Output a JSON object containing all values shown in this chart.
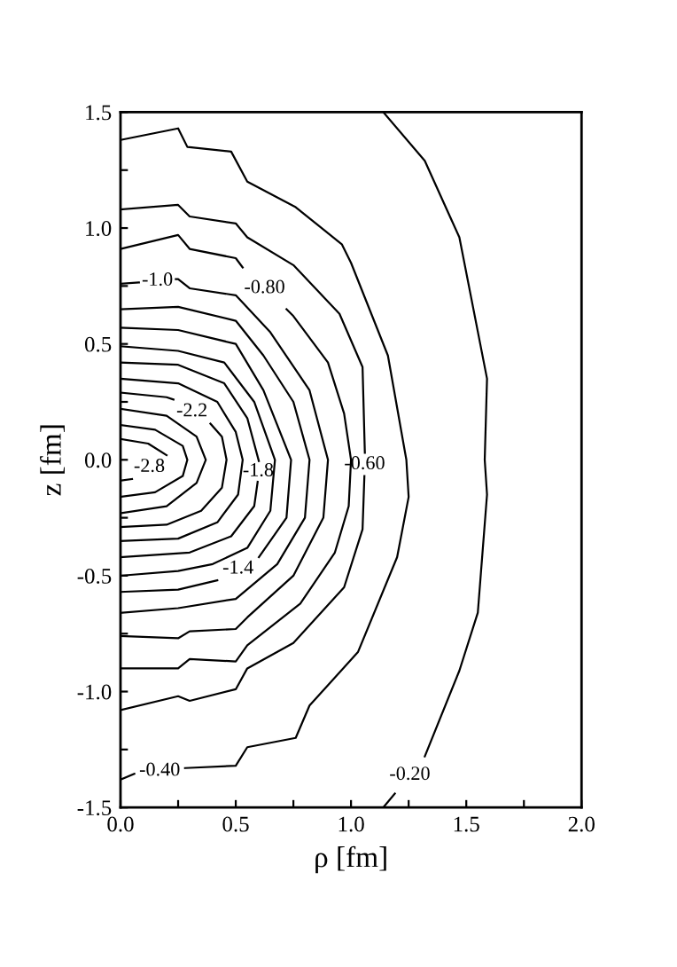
{
  "chart_data": {
    "type": "line",
    "xlabel": "ρ [fm]",
    "ylabel": "z [fm]",
    "xlim": [
      0,
      2
    ],
    "ylim": [
      -1.5,
      1.5
    ],
    "xticks": [
      {
        "value": 0,
        "label": "0.0"
      },
      {
        "value": 0.25,
        "label": null
      },
      {
        "value": 0.5,
        "label": "0.5"
      },
      {
        "value": 0.75,
        "label": null
      },
      {
        "value": 1,
        "label": "1.0"
      },
      {
        "value": 1.25,
        "label": null
      },
      {
        "value": 1.5,
        "label": "1.5"
      },
      {
        "value": 1.75,
        "label": null
      },
      {
        "value": 2,
        "label": "2.0"
      }
    ],
    "yticks": [
      {
        "value": -1.5,
        "label": "-1.5"
      },
      {
        "value": -1.25,
        "label": null
      },
      {
        "value": -1,
        "label": "-1.0"
      },
      {
        "value": -0.75,
        "label": null
      },
      {
        "value": -0.5,
        "label": "-0.5"
      },
      {
        "value": -0.25,
        "label": null
      },
      {
        "value": 0,
        "label": "0.0"
      },
      {
        "value": 0.25,
        "label": null
      },
      {
        "value": 0.5,
        "label": "0.5"
      },
      {
        "value": 0.75,
        "label": null
      },
      {
        "value": 1,
        "label": "1.0"
      },
      {
        "value": 1.25,
        "label": null
      },
      {
        "value": 1.5,
        "label": "1.5"
      }
    ],
    "grid": false,
    "legend": false,
    "marker": "none",
    "line_style": "solid",
    "series": [
      {
        "name": "-0.20",
        "color": "#000000",
        "x": [
          1.14,
          1.32,
          1.47,
          1.59,
          1.58,
          1.59,
          1.55,
          1.47,
          1.32,
          null,
          1.19,
          1.14
        ],
        "values": [
          1.5,
          1.29,
          0.96,
          0.35,
          0.0,
          -0.15,
          -0.66,
          -0.91,
          -1.28,
          null,
          -1.44,
          -1.5
        ]
      },
      {
        "name": "-0.40",
        "color": "#000000",
        "x": [
          0,
          0.25,
          0.29,
          0.48,
          0.55,
          0.76,
          0.96,
          1.0,
          1.16,
          1.24,
          1.25,
          1.2,
          1.03,
          0.82,
          0.76,
          0.55,
          0.5,
          0.28,
          null,
          0.06,
          0
        ],
        "values": [
          1.38,
          1.43,
          1.35,
          1.33,
          1.2,
          1.09,
          0.93,
          0.85,
          0.45,
          0.0,
          -0.16,
          -0.42,
          -0.83,
          -1.06,
          -1.2,
          -1.24,
          -1.32,
          -1.33,
          null,
          -1.355,
          -1.38
        ]
      },
      {
        "name": "-0.60",
        "color": "#000000",
        "x": [
          0,
          0.25,
          0.3,
          0.5,
          0.55,
          0.75,
          0.95,
          1.05,
          1.06,
          null,
          1.058,
          1.05,
          0.97,
          0.75,
          0.55,
          0.5,
          0.3,
          0.25,
          0
        ],
        "values": [
          1.08,
          1.1,
          1.05,
          1.02,
          0.96,
          0.84,
          0.63,
          0.4,
          0.03,
          null,
          -0.07,
          -0.3,
          -0.55,
          -0.79,
          -0.9,
          -0.99,
          -1.04,
          -1.02,
          -1.08
        ]
      },
      {
        "name": "-0.80",
        "color": "#000000",
        "x": [
          0,
          0.25,
          0.3,
          0.5,
          0.53,
          null,
          0.72,
          0.75,
          0.9,
          0.97,
          1.0,
          0.99,
          0.93,
          0.78,
          0.55,
          0.5,
          0.3,
          0.25,
          0
        ],
        "values": [
          0.91,
          0.97,
          0.91,
          0.87,
          0.83,
          null,
          0.65,
          0.62,
          0.42,
          0.2,
          0.0,
          -0.2,
          -0.4,
          -0.62,
          -0.8,
          -0.87,
          -0.86,
          -0.9,
          -0.9
        ]
      },
      {
        "name": "-1.0",
        "color": "#000000",
        "x": [
          0,
          0.08,
          null,
          0.24,
          0.25,
          0.3,
          0.5,
          0.65,
          0.82,
          0.9,
          0.88,
          0.75,
          0.55,
          0.5,
          0.3,
          0.25,
          0
        ],
        "values": [
          0.76,
          0.765,
          null,
          0.78,
          0.78,
          0.74,
          0.71,
          0.55,
          0.3,
          0.0,
          -0.25,
          -0.5,
          -0.68,
          -0.73,
          -0.74,
          -0.77,
          -0.76
        ]
      },
      {
        "color": "#000000",
        "x": [
          0,
          0.25,
          0.5,
          0.62,
          0.75,
          0.82,
          0.8,
          0.68,
          0.5,
          0.25,
          0
        ],
        "values": [
          0.65,
          0.66,
          0.6,
          0.45,
          0.25,
          0.0,
          -0.25,
          -0.45,
          -0.6,
          -0.64,
          -0.66
        ]
      },
      {
        "name": "-1.4",
        "color": "#000000",
        "x": [
          0,
          0.25,
          0.5,
          0.62,
          0.74,
          0.72,
          0.6,
          null,
          0.42,
          0.25,
          0
        ],
        "values": [
          0.57,
          0.56,
          0.5,
          0.3,
          0.0,
          -0.25,
          -0.42,
          null,
          -0.52,
          -0.56,
          -0.57
        ]
      },
      {
        "color": "#000000",
        "x": [
          0,
          0.25,
          0.45,
          0.58,
          0.67,
          0.65,
          0.55,
          0.4,
          0.25,
          0
        ],
        "values": [
          0.49,
          0.47,
          0.42,
          0.25,
          0.0,
          -0.22,
          -0.38,
          -0.45,
          -0.48,
          -0.5
        ]
      },
      {
        "name": "-1.8",
        "color": "#000000",
        "x": [
          0,
          0.25,
          0.45,
          0.55,
          0.6,
          null,
          0.595,
          0.58,
          0.48,
          0.3,
          0
        ],
        "values": [
          0.42,
          0.41,
          0.33,
          0.18,
          -0.005,
          null,
          -0.095,
          -0.2,
          -0.33,
          -0.4,
          -0.42
        ]
      },
      {
        "color": "#000000",
        "x": [
          0,
          0.25,
          0.42,
          0.5,
          0.53,
          0.51,
          0.42,
          0.25,
          0
        ],
        "values": [
          0.35,
          0.33,
          0.25,
          0.12,
          0.0,
          -0.15,
          -0.27,
          -0.34,
          -0.35
        ]
      },
      {
        "name": "-2.2",
        "color": "#000000",
        "x": [
          0,
          0.2,
          0.23,
          null,
          0.39,
          0.44,
          0.46,
          0.44,
          0.35,
          0.2,
          0
        ],
        "values": [
          0.29,
          0.27,
          0.26,
          null,
          0.156,
          0.1,
          0.0,
          -0.12,
          -0.22,
          -0.28,
          -0.29
        ]
      },
      {
        "color": "#000000",
        "x": [
          0,
          0.2,
          0.33,
          0.37,
          0.33,
          0.2,
          0
        ],
        "values": [
          0.22,
          0.19,
          0.1,
          0.0,
          -0.1,
          -0.2,
          -0.23
        ]
      },
      {
        "color": "#000000",
        "x": [
          0,
          0.15,
          0.27,
          0.29,
          0.27,
          0.15,
          0
        ],
        "values": [
          0.15,
          0.13,
          0.06,
          0.0,
          -0.07,
          -0.14,
          -0.16
        ]
      },
      {
        "name": "-2.8",
        "color": "#000000",
        "x": [
          0,
          0.12,
          0.2,
          null,
          0.05,
          0
        ],
        "values": [
          0.09,
          0.07,
          0.02,
          null,
          -0.083,
          -0.09
        ]
      }
    ]
  }
}
